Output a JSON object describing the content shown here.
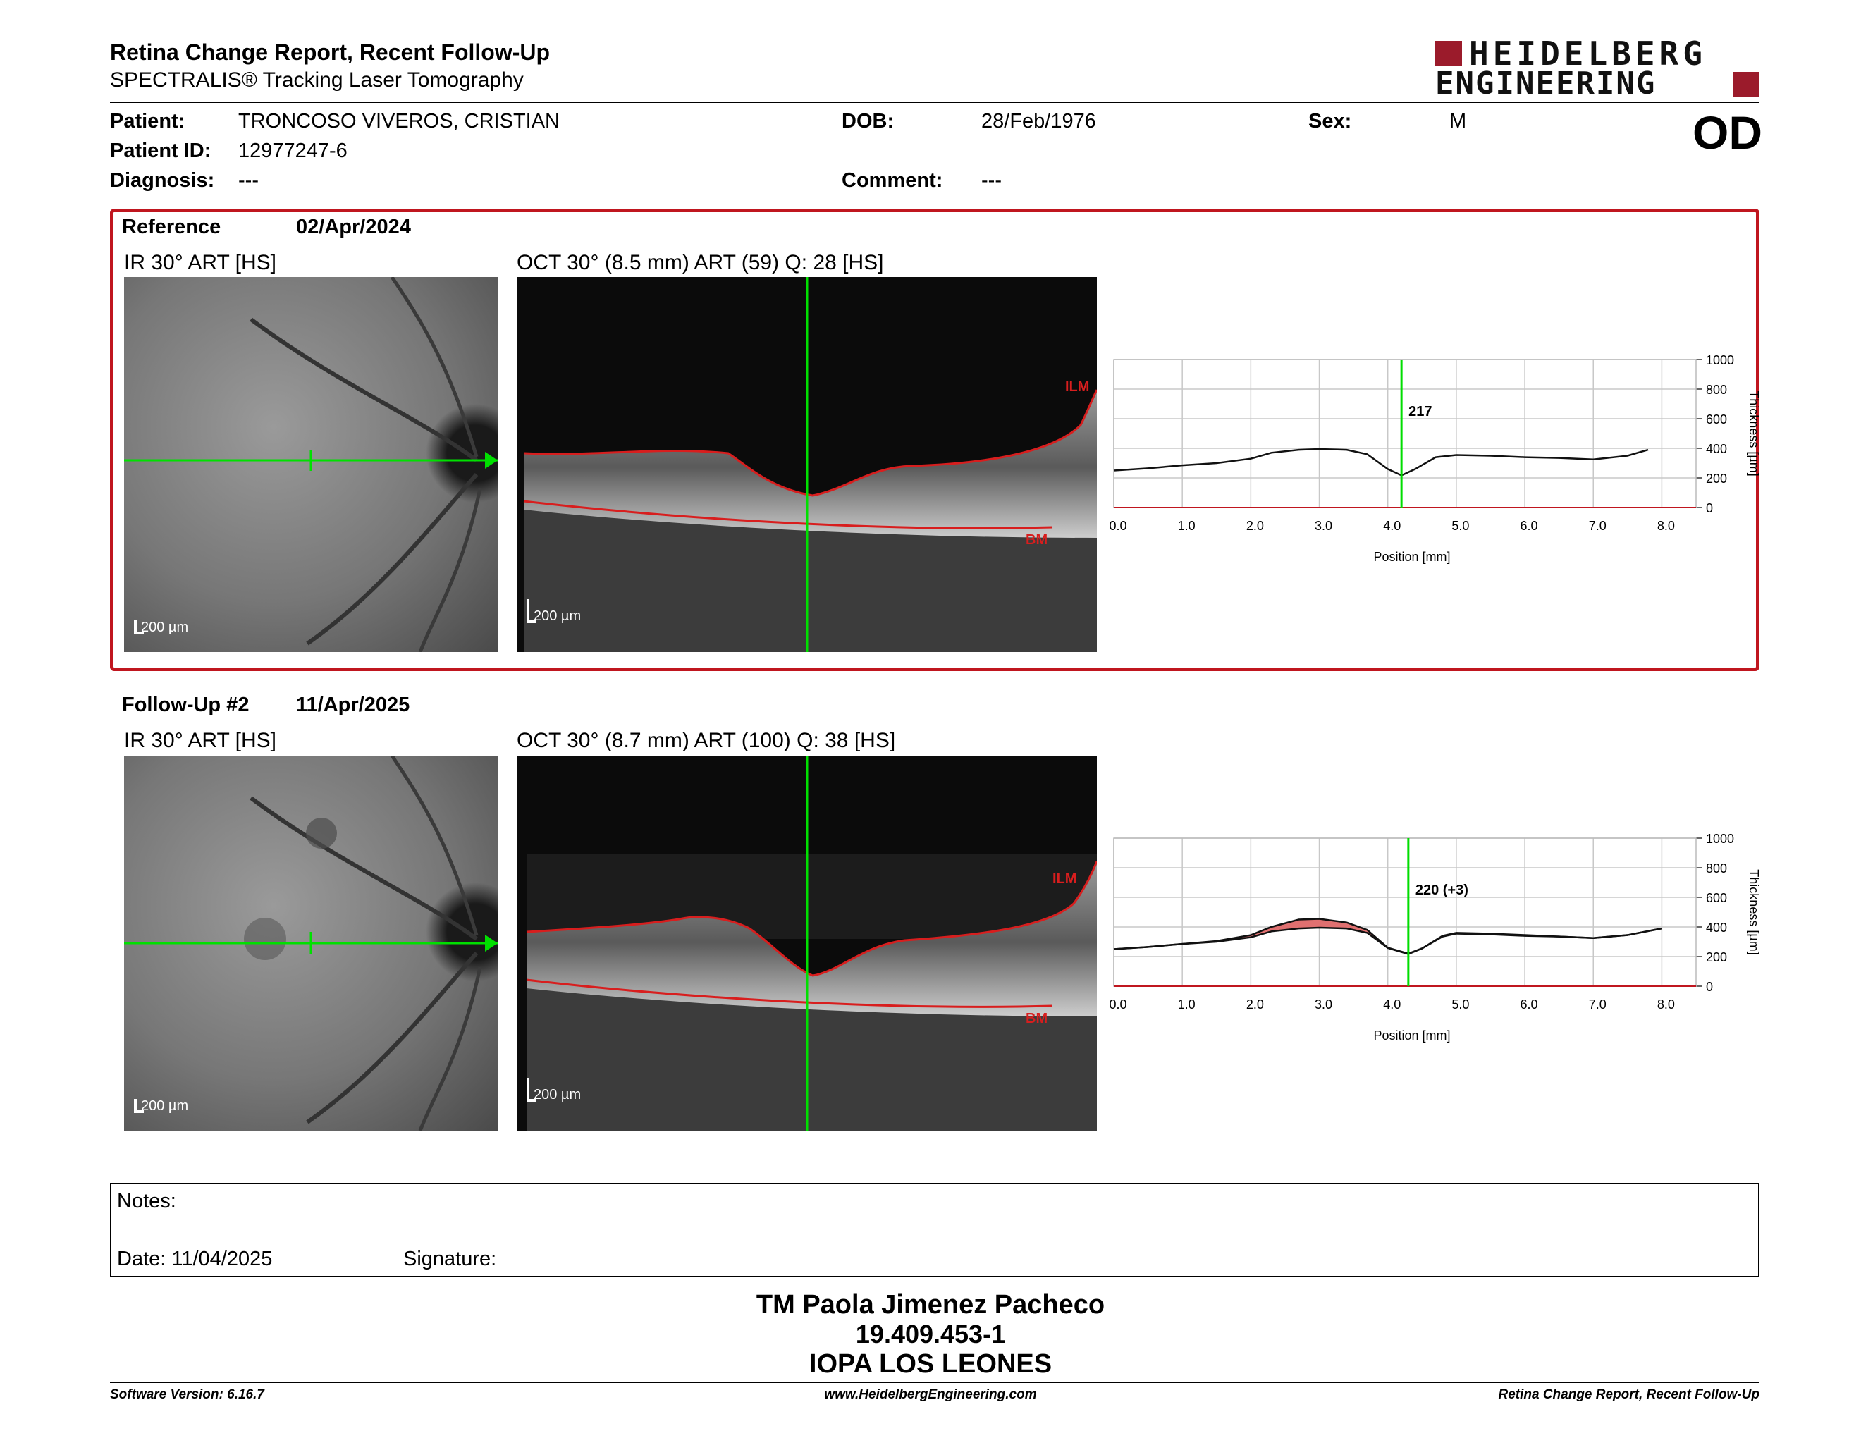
{
  "header": {
    "title": "Retina Change Report, Recent Follow-Up",
    "subtitle": "SPECTRALIS® Tracking Laser Tomography",
    "logo_line1": "HEIDELBERG",
    "logo_line2": "ENGINEERING",
    "brand_color": "#9b1b2b"
  },
  "patient": {
    "patient_label": "Patient:",
    "patient_value": "TRONCOSO VIVEROS, CRISTIAN",
    "id_label": "Patient ID:",
    "id_value": "12977247-6",
    "diagnosis_label": "Diagnosis:",
    "diagnosis_value": "---",
    "dob_label": "DOB:",
    "dob_value": "28/Feb/1976",
    "comment_label": "Comment:",
    "comment_value": "---",
    "sex_label": "Sex:",
    "sex_value": "M",
    "eye": "OD"
  },
  "reference": {
    "label": "Reference",
    "date": "02/Apr/2024",
    "ir_caption": "IR 30° ART [HS]",
    "oct_caption": "OCT 30° (8.5 mm) ART (59) Q: 28 [HS]",
    "scale": "200 µm",
    "ilm": "ILM",
    "bm": "BM",
    "thickness_label": "217"
  },
  "followup": {
    "label": "Follow-Up #2",
    "date": "11/Apr/2025",
    "ir_caption": "IR 30° ART [HS]",
    "oct_caption": "OCT 30° (8.7 mm) ART (100) Q: 38 [HS]",
    "scale": "200 µm",
    "ilm": "ILM",
    "bm": "BM",
    "thickness_label": "220 (+3)"
  },
  "chart_data": [
    {
      "type": "line",
      "xlabel": "Position [mm]",
      "ylabel": "Thickness [µm]",
      "xlim": [
        0,
        8.5
      ],
      "ylim": [
        0,
        1000
      ],
      "x_ticks": [
        "0.0",
        "1.0",
        "2.0",
        "3.0",
        "4.0",
        "5.0",
        "6.0",
        "7.0",
        "8.0"
      ],
      "y_ticks": [
        "0",
        "200",
        "400",
        "600",
        "800",
        "1000"
      ],
      "marker_x": 4.2,
      "marker_label": "217",
      "series": [
        {
          "x": [
            0.0,
            0.5,
            1.0,
            1.5,
            2.0,
            2.3,
            2.7,
            3.0,
            3.4,
            3.7,
            4.0,
            4.2,
            4.4,
            4.7,
            5.0,
            5.5,
            6.0,
            6.5,
            7.0,
            7.5,
            7.8
          ],
          "values": [
            250,
            265,
            285,
            300,
            330,
            370,
            390,
            395,
            390,
            360,
            260,
            217,
            260,
            340,
            355,
            350,
            340,
            335,
            325,
            350,
            390
          ]
        }
      ]
    },
    {
      "type": "line",
      "xlabel": "Position [mm]",
      "ylabel": "Thickness [µm]",
      "xlim": [
        0,
        8.5
      ],
      "ylim": [
        0,
        1000
      ],
      "x_ticks": [
        "0.0",
        "1.0",
        "2.0",
        "3.0",
        "4.0",
        "5.0",
        "6.0",
        "7.0",
        "8.0"
      ],
      "y_ticks": [
        "0",
        "200",
        "400",
        "600",
        "800",
        "1000"
      ],
      "marker_x": 4.3,
      "marker_label": "220 (+3)",
      "series": [
        {
          "x": [
            0.0,
            0.5,
            1.0,
            1.5,
            2.0,
            2.3,
            2.7,
            3.0,
            3.4,
            3.7,
            4.0,
            4.3,
            4.5,
            4.8,
            5.0,
            5.5,
            6.0,
            6.5,
            7.0,
            7.5,
            8.0
          ],
          "values": [
            250,
            265,
            285,
            305,
            345,
            400,
            450,
            455,
            430,
            380,
            260,
            220,
            255,
            340,
            360,
            355,
            345,
            335,
            325,
            345,
            390
          ]
        },
        {
          "x": [
            0.0,
            0.5,
            1.0,
            1.5,
            2.0,
            2.3,
            2.7,
            3.0,
            3.4,
            3.7,
            4.0,
            4.3,
            4.5,
            4.8,
            5.0,
            5.5,
            6.0,
            6.5,
            7.0,
            7.5,
            8.0
          ],
          "values": [
            250,
            265,
            285,
            300,
            330,
            370,
            390,
            395,
            390,
            360,
            258,
            217,
            255,
            335,
            355,
            350,
            340,
            335,
            325,
            345,
            390
          ]
        }
      ],
      "increase_color": "#e07070"
    }
  ],
  "notes": {
    "label": "Notes:",
    "date_label": "Date: 11/04/2025",
    "signature_label": "Signature:"
  },
  "footer": {
    "name": "TM Paola Jimenez Pacheco",
    "rut": "19.409.453-1",
    "place": "IOPA LOS LEONES",
    "software": "Software Version: 6.16.7",
    "website": "www.HeidelbergEngineering.com",
    "report": "Retina Change Report, Recent Follow-Up"
  }
}
